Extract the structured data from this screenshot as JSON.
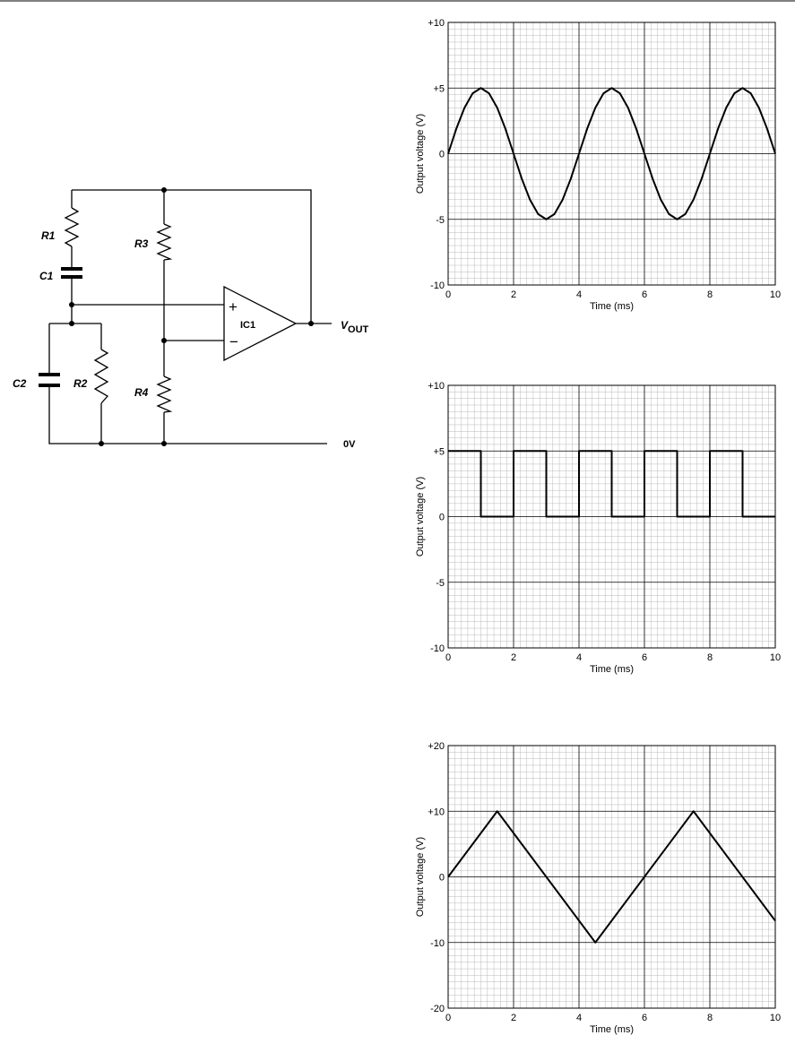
{
  "circuit": {
    "r1": "R1",
    "c1": "C1",
    "r3": "R3",
    "c2": "C2",
    "r2": "R2",
    "r4": "R4",
    "plus": "+",
    "minus": "−",
    "ic1": "IC1",
    "vout": "V",
    "vout_sub": "OUT",
    "zero": "0V"
  },
  "chart_data": [
    {
      "type": "line",
      "xlabel": "Time (ms)",
      "ylabel": "Output voltage (V)",
      "color": "#000000",
      "x": [
        0,
        0.25,
        0.5,
        0.75,
        1,
        1.25,
        1.5,
        1.75,
        2,
        2.25,
        2.5,
        2.75,
        3,
        3.25,
        3.5,
        3.75,
        4,
        4.25,
        4.5,
        4.75,
        5,
        5.25,
        5.5,
        5.75,
        6,
        6.25,
        6.5,
        6.75,
        7,
        7.25,
        7.5,
        7.75,
        8,
        8.25,
        8.5,
        8.75,
        9,
        9.25,
        9.5,
        9.75,
        10
      ],
      "values": [
        0,
        1.9,
        3.5,
        4.6,
        5,
        4.6,
        3.5,
        1.9,
        0,
        -1.9,
        -3.5,
        -4.6,
        -5,
        -4.6,
        -3.5,
        -1.9,
        0,
        1.9,
        3.5,
        4.6,
        5,
        4.6,
        3.5,
        1.9,
        0,
        -1.9,
        -3.5,
        -4.6,
        -5,
        -4.6,
        -3.5,
        -1.9,
        0,
        1.9,
        3.5,
        4.6,
        5,
        4.6,
        3.5,
        1.9,
        0
      ],
      "xlim": [
        0,
        10
      ],
      "xticks": [
        0,
        2,
        4,
        6,
        8,
        10
      ],
      "ylim": [
        -10,
        10
      ],
      "yticks": [
        {
          "value": 10,
          "label": "+10"
        },
        {
          "value": 5,
          "label": "+5"
        },
        0,
        -5,
        -10
      ],
      "grid": true,
      "minor_divisions": 10
    },
    {
      "type": "line",
      "xlabel": "Time (ms)",
      "ylabel": "Output voltage (V)",
      "color": "#000000",
      "x": [
        0,
        1,
        1,
        2,
        2,
        3,
        3,
        4,
        4,
        5,
        5,
        6,
        6,
        7,
        7,
        8,
        8,
        9,
        9,
        10
      ],
      "values": [
        5,
        5,
        0,
        0,
        5,
        5,
        0,
        0,
        5,
        5,
        0,
        0,
        5,
        5,
        0,
        0,
        5,
        5,
        0,
        0
      ],
      "xlim": [
        0,
        10
      ],
      "xticks": [
        0,
        2,
        4,
        6,
        8,
        10
      ],
      "ylim": [
        -10,
        10
      ],
      "yticks": [
        {
          "value": 10,
          "label": "+10"
        },
        {
          "value": 5,
          "label": "+5"
        },
        0,
        -5,
        -10
      ],
      "grid": true,
      "minor_divisions": 10
    },
    {
      "type": "line",
      "xlabel": "Time (ms)",
      "ylabel": "Output voltage (V)",
      "color": "#000000",
      "x": [
        0,
        1.5,
        4.5,
        7.5,
        10
      ],
      "values": [
        0,
        10,
        -10,
        10,
        -6.7
      ],
      "xlim": [
        0,
        10
      ],
      "xticks": [
        0,
        2,
        4,
        6,
        8,
        10
      ],
      "ylim": [
        -20,
        20
      ],
      "yticks": [
        {
          "value": 20,
          "label": "+20"
        },
        {
          "value": 10,
          "label": "+10"
        },
        0,
        -10,
        -20
      ],
      "grid": true,
      "minor_divisions": 10
    }
  ]
}
